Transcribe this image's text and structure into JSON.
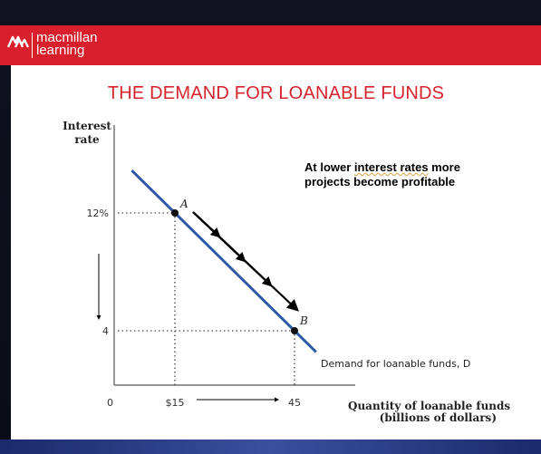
{
  "brand": {
    "line1": "macmillan",
    "line2": "learning",
    "color": "#d91f2b"
  },
  "slide": {
    "title": "THE DEMAND FOR LOANABLE FUNDS",
    "note_part1": "At lower ",
    "note_wavy": "interest rates",
    "note_part2": " more projects become profitable"
  },
  "chart_data": {
    "type": "line",
    "ylabel_line1": "Interest",
    "ylabel_line2": "rate",
    "xlabel_line1": "Quantity of loanable funds",
    "xlabel_line2": "(billions of dollars)",
    "origin_label": "0",
    "y_ticks": [
      {
        "value": 12,
        "label": "12%"
      },
      {
        "value": 4,
        "label": "4"
      }
    ],
    "x_ticks": [
      {
        "value": 15,
        "label": "$15"
      },
      {
        "value": 45,
        "label": "45"
      }
    ],
    "series": [
      {
        "name": "Demand for loanable funds, D",
        "color": "#2d58a8"
      }
    ],
    "points": [
      {
        "label": "A",
        "x": 15,
        "y": 12
      },
      {
        "label": "B",
        "x": 45,
        "y": 4
      }
    ],
    "grid": false
  }
}
